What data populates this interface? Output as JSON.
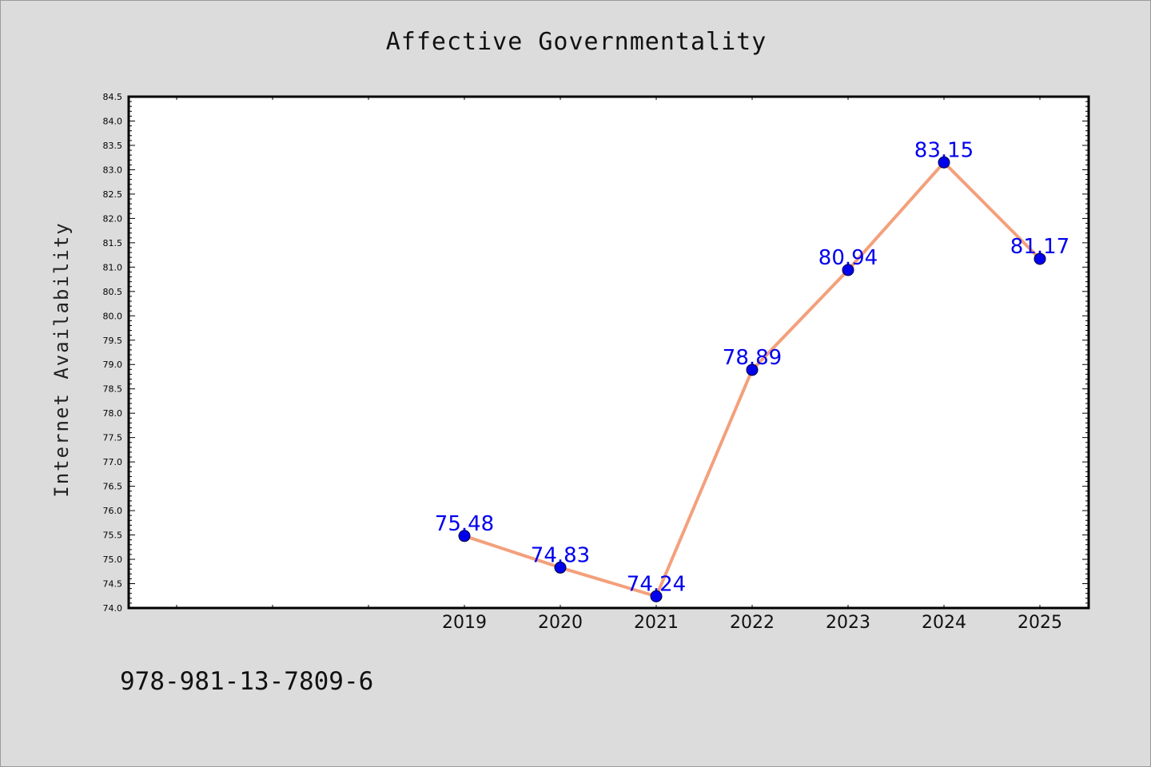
{
  "page": {
    "footer_code": "978-981-13-7809-6"
  },
  "chart_data": {
    "type": "line",
    "title": "Affective Governmentality",
    "xlabel": "",
    "ylabel": "Internet Availability",
    "categories": [
      "",
      "",
      "",
      "2019",
      "2020",
      "2021",
      "2022",
      "2023",
      "2024",
      "2025"
    ],
    "series": [
      {
        "values": [
          null,
          null,
          null,
          75.48,
          74.83,
          74.24,
          78.89,
          80.94,
          83.15,
          81.17
        ],
        "labels": [
          "",
          "",
          "",
          "75.48",
          "74.83",
          "74.24",
          "78.89",
          "80.94",
          "83.15",
          "81.17"
        ]
      }
    ],
    "ylim": [
      74.0,
      84.5
    ],
    "yticks": [
      "74.0",
      "74.5",
      "75.0",
      "75.5",
      "76.0",
      "76.5",
      "77.0",
      "77.5",
      "78.0",
      "78.5",
      "79.0",
      "79.5",
      "80.0",
      "80.5",
      "81.0",
      "81.5",
      "82.0",
      "82.5",
      "83.0",
      "83.5",
      "84.0",
      "84.5"
    ],
    "grid": false,
    "legend": "none",
    "colors": {
      "line": "#f4a07c",
      "marker": "#0000ee",
      "data_label": "#0000ee",
      "axes": "#000000",
      "background": "#dcdcdc",
      "plot_area": "#ffffff"
    }
  }
}
